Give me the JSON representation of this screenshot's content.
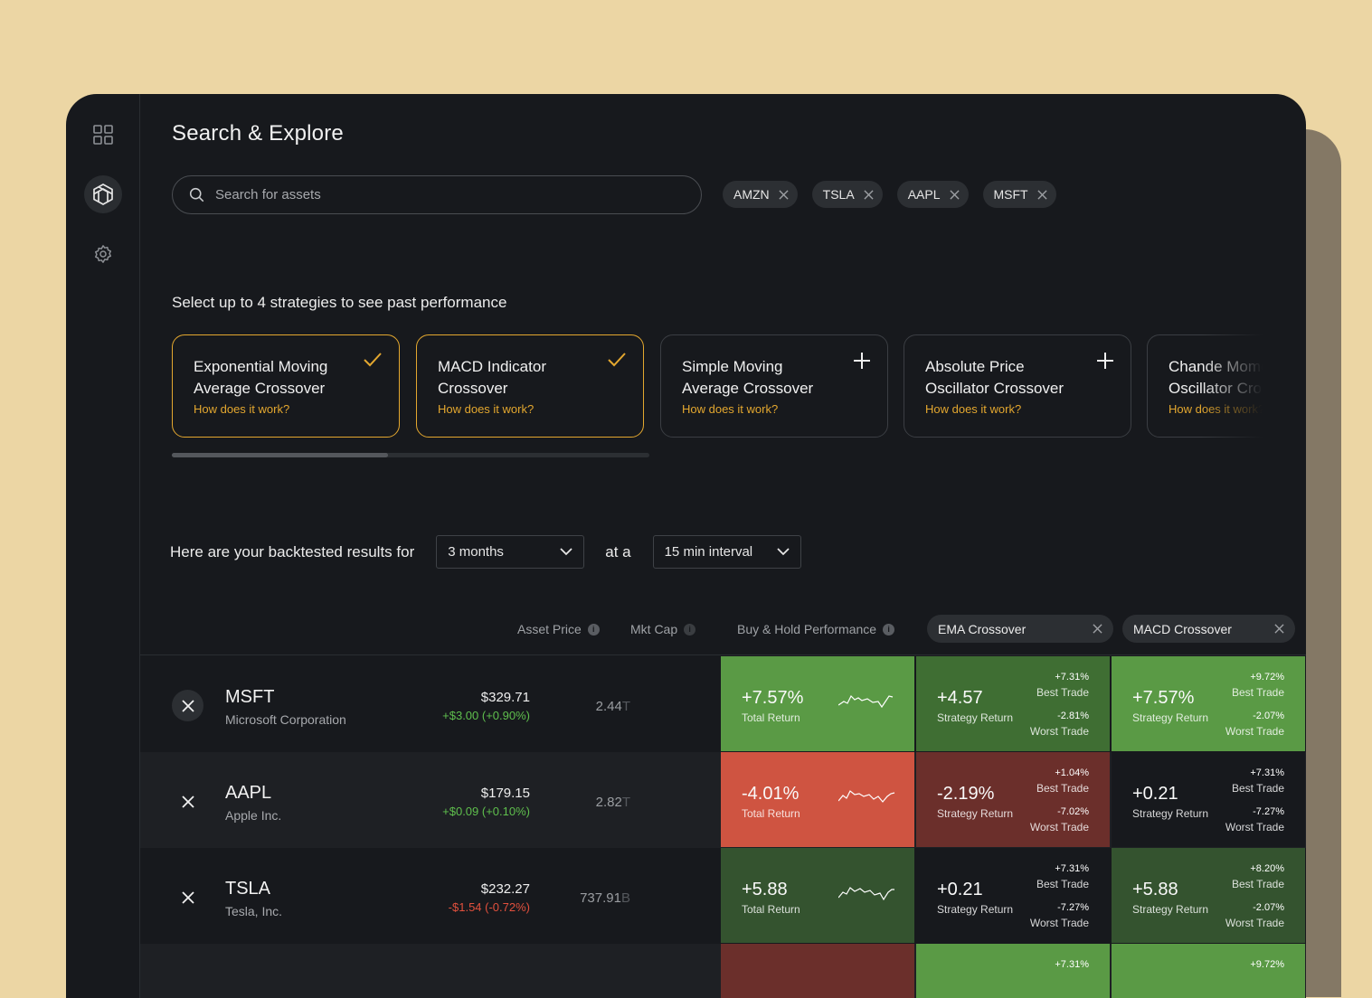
{
  "page": {
    "title": "Search & Explore"
  },
  "search": {
    "placeholder": "Search for assets"
  },
  "chips": [
    "AMZN",
    "TSLA",
    "AAPL",
    "MSFT"
  ],
  "strategies": {
    "heading": "Select up to 4 strategies to see past performance",
    "items": [
      {
        "line1": "Exponential Moving",
        "line2": "Average Crossover",
        "link": "How does it work?",
        "selected": true
      },
      {
        "line1": "MACD Indicator",
        "line2": "Crossover",
        "link": "How does it work?",
        "selected": true
      },
      {
        "line1": "Simple Moving",
        "line2": "Average Crossover",
        "link": "How does it work?",
        "selected": false
      },
      {
        "line1": "Absolute Price",
        "line2": "Oscillator Crossover",
        "link": "How does it work?",
        "selected": false
      },
      {
        "line1": "Chande Momentum",
        "line2": "Oscillator Crossover",
        "link": "How does it work?",
        "selected": false
      }
    ]
  },
  "results": {
    "lead": "Here are your backtested results for",
    "period": "3 months",
    "connector": "at a",
    "interval": "15 min interval"
  },
  "columns": {
    "asset_price": "Asset Price",
    "mkt_cap": "Mkt Cap",
    "buy_hold": "Buy & Hold Performance",
    "info_glyph": "i",
    "strat1": "EMA Crossover",
    "strat2": "MACD Crossover"
  },
  "labels": {
    "total_return": "Total Return",
    "strategy_return": "Strategy Return",
    "best_trade": "Best Trade",
    "worst_trade": "Worst Trade"
  },
  "colors": {
    "accent": "#e3a72f",
    "strong_green": "#5a9a45",
    "mid_green": "#3f6e33",
    "dark_green": "#34532f",
    "strong_red": "#cf5441",
    "dark_red": "#6b2f2b",
    "neutral": "#17191d"
  },
  "rows": [
    {
      "symbol": "MSFT",
      "name": "Microsoft Corporation",
      "price": "$329.71",
      "change": "+$3.00 (+0.90%)",
      "change_dir": "pos",
      "cap_num": "2.44",
      "cap_unit": "T",
      "bh": {
        "value": "+7.57%",
        "bg": "strong_green"
      },
      "s1": {
        "value": "+4.57",
        "best": "+7.31%",
        "worst": "-2.81%",
        "bg": "mid_green"
      },
      "s2": {
        "value": "+7.57%",
        "best": "+9.72%",
        "worst": "-2.07%",
        "bg": "strong_green"
      }
    },
    {
      "symbol": "AAPL",
      "name": "Apple Inc.",
      "price": "$179.15",
      "change": "+$0.09 (+0.10%)",
      "change_dir": "pos",
      "cap_num": "2.82",
      "cap_unit": "T",
      "bh": {
        "value": "-4.01%",
        "bg": "strong_red"
      },
      "s1": {
        "value": "-2.19%",
        "best": "+1.04%",
        "worst": "-7.02%",
        "bg": "dark_red"
      },
      "s2": {
        "value": "+0.21",
        "best": "+7.31%",
        "worst": "-7.27%",
        "bg": "neutral"
      }
    },
    {
      "symbol": "TSLA",
      "name": "Tesla, Inc.",
      "price": "$232.27",
      "change": "-$1.54 (-0.72%)",
      "change_dir": "neg",
      "cap_num": "737.91",
      "cap_unit": "B",
      "bh": {
        "value": "+5.88",
        "bg": "dark_green"
      },
      "s1": {
        "value": "+0.21",
        "best": "+7.31%",
        "worst": "-7.27%",
        "bg": "neutral"
      },
      "s2": {
        "value": "+5.88",
        "best": "+8.20%",
        "worst": "-2.07%",
        "bg": "dark_green"
      }
    }
  ],
  "partial_row": {
    "bh_bg": "dark_red",
    "s1_bg": "strong_green",
    "s2_bg": "strong_green",
    "s1_best": "+7.31%",
    "s2_best": "+9.72%"
  }
}
